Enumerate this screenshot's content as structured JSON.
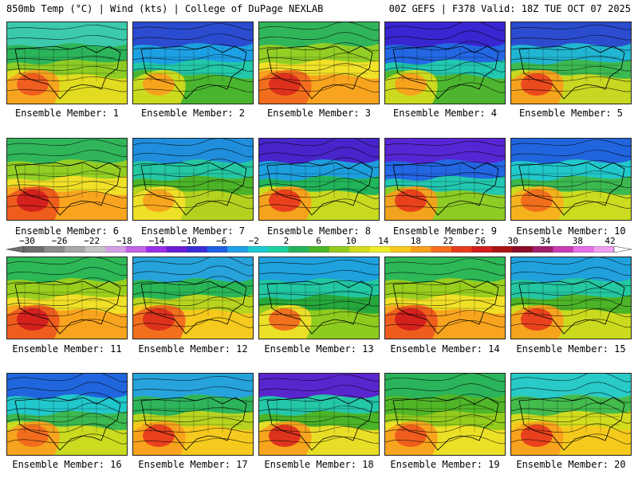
{
  "header": {
    "left": "850mb Temp (°C) | Wind (kts) | College of DuPage NEXLAB",
    "right": "00Z GEFS | F378 Valid: 18Z TUE OCT 07 2025"
  },
  "colorbar": {
    "ticks": [
      "−30",
      "−26",
      "−22",
      "−18",
      "−14",
      "−10",
      "−6",
      "−2",
      "2",
      "6",
      "10",
      "14",
      "18",
      "22",
      "26",
      "30",
      "34",
      "38",
      "42"
    ],
    "colors": [
      "#6e6e6e",
      "#8c8c8c",
      "#a8a8a8",
      "#c4c4c4",
      "#d59fe6",
      "#c264e6",
      "#9a2ee6",
      "#6a1fd6",
      "#3a2cd6",
      "#2060e6",
      "#1ea0e6",
      "#20c8d2",
      "#1ed0a0",
      "#22b45a",
      "#4cb428",
      "#94cc1e",
      "#d2dc1e",
      "#f0ec28",
      "#f8c81e",
      "#f8a01e",
      "#f46e1e",
      "#e83c1e",
      "#d21e1e",
      "#aa1414",
      "#8c0a28",
      "#a01e6e",
      "#c83cb4",
      "#e66ee6",
      "#f0a0f0"
    ]
  },
  "members": [
    {
      "label": "Ensemble Member: 1",
      "palette": [
        "#38c8b4",
        "#26b25e",
        "#8ccc24",
        "#e6dc20",
        "#f8a020",
        "#ee5a20"
      ]
    },
    {
      "label": "Ensemble Member: 2",
      "palette": [
        "#2c46d2",
        "#1e9ee6",
        "#22c8a8",
        "#4cb428",
        "#d2dc1e",
        "#f8a01e"
      ]
    },
    {
      "label": "Ensemble Member: 3",
      "palette": [
        "#26b25e",
        "#8ccc24",
        "#f0e028",
        "#f8a01e",
        "#f06a1e",
        "#dc2e1e"
      ]
    },
    {
      "label": "Ensemble Member: 4",
      "palette": [
        "#3a1ed2",
        "#2462e6",
        "#22c8b0",
        "#50b428",
        "#d2dc1e",
        "#f8a01e"
      ]
    },
    {
      "label": "Ensemble Member: 5",
      "palette": [
        "#2a46d6",
        "#20b4d8",
        "#3cb850",
        "#cfd820",
        "#f8a01e",
        "#ea461e"
      ]
    },
    {
      "label": "Ensemble Member: 6",
      "palette": [
        "#26b25e",
        "#8ccc24",
        "#f0e028",
        "#f8a01e",
        "#ee5a1e",
        "#d21e1e"
      ]
    },
    {
      "label": "Ensemble Member: 7",
      "palette": [
        "#1e8ce6",
        "#22c8a8",
        "#4cb428",
        "#b8d420",
        "#f0e028",
        "#f8a01e"
      ]
    },
    {
      "label": "Ensemble Member: 8",
      "palette": [
        "#4a1ed2",
        "#1e9ee6",
        "#22b45a",
        "#d2dc1e",
        "#f8a01e",
        "#e83c1e"
      ]
    },
    {
      "label": "Ensemble Member: 9",
      "palette": [
        "#5a1ed6",
        "#2462e6",
        "#22c8b0",
        "#94cc1e",
        "#f8a01e",
        "#e83c1e"
      ]
    },
    {
      "label": "Ensemble Member: 10",
      "palette": [
        "#2060e6",
        "#20c8d2",
        "#3cb850",
        "#d2dc1e",
        "#f8b01e",
        "#f06a1e"
      ]
    },
    {
      "label": "Ensemble Member: 11",
      "palette": [
        "#22b45a",
        "#94cc1e",
        "#f0e028",
        "#f8a01e",
        "#ee5a1e",
        "#d21e1e"
      ]
    },
    {
      "label": "Ensemble Member: 12",
      "palette": [
        "#1ea0e6",
        "#22b45a",
        "#b8d420",
        "#f8c81e",
        "#f06a1e",
        "#dc2e1e"
      ]
    },
    {
      "label": "Ensemble Member: 13",
      "palette": [
        "#1ea0e6",
        "#22c8a8",
        "#26a83c",
        "#94cc1e",
        "#f0e028",
        "#f06a1e"
      ]
    },
    {
      "label": "Ensemble Member: 14",
      "palette": [
        "#22b45a",
        "#94cc1e",
        "#f0e028",
        "#f8a01e",
        "#ee5a1e",
        "#d21e1e"
      ]
    },
    {
      "label": "Ensemble Member: 15",
      "palette": [
        "#1ea0e6",
        "#22c8a8",
        "#4cb428",
        "#d2dc1e",
        "#f8a01e",
        "#e83c1e"
      ]
    },
    {
      "label": "Ensemble Member: 16",
      "palette": [
        "#2060e6",
        "#20c8d2",
        "#3cb850",
        "#d2dc1e",
        "#f8a01e",
        "#f06a1e"
      ]
    },
    {
      "label": "Ensemble Member: 17",
      "palette": [
        "#1ea0e6",
        "#26b25e",
        "#b8d420",
        "#f8c81e",
        "#f8a01e",
        "#e83c1e"
      ]
    },
    {
      "label": "Ensemble Member: 18",
      "palette": [
        "#5a1ed6",
        "#22c8b0",
        "#4cb428",
        "#f0e028",
        "#f8a01e",
        "#dc2e1e"
      ]
    },
    {
      "label": "Ensemble Member: 19",
      "palette": [
        "#26b25e",
        "#4cb428",
        "#94cc1e",
        "#f0e028",
        "#f8a01e",
        "#ee5a1e"
      ]
    },
    {
      "label": "Ensemble Member: 20",
      "palette": [
        "#20c8d2",
        "#3cb850",
        "#d2dc1e",
        "#f8c81e",
        "#f8a01e",
        "#e83c1e"
      ]
    }
  ]
}
